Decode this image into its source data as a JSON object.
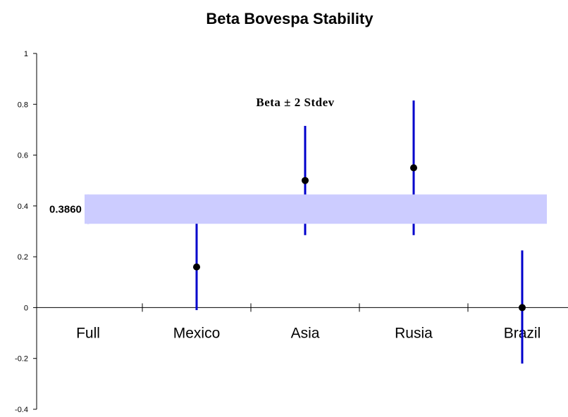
{
  "chart_data": {
    "type": "scatter",
    "title": "Beta Bovespa Stability",
    "subtitle": "Beta ± 2 Stdev",
    "xlabel": "",
    "ylabel": "",
    "categories": [
      "Full",
      "Mexico",
      "Asia",
      "Rusia",
      "Brazil"
    ],
    "ylim": [
      -0.4,
      1
    ],
    "yticks": [
      -0.4,
      -0.2,
      0,
      0.2,
      0.4,
      0.6,
      0.8,
      1
    ],
    "ytick_labels": [
      "-0.4",
      "-0.2",
      "0",
      "0.2",
      "0.4",
      "0.6",
      "0.8",
      "1"
    ],
    "grid": false,
    "series": [
      {
        "values": [
          0.386,
          0.16,
          0.5,
          0.55,
          0.0
        ],
        "lower": [
          0.33,
          -0.01,
          0.285,
          0.285,
          -0.22
        ],
        "upper": [
          0.445,
          0.335,
          0.715,
          0.815,
          0.225
        ]
      }
    ],
    "band": {
      "lower": 0.33,
      "upper": 0.445,
      "label": "0.3860"
    },
    "colors": {
      "errorbar": "#0000cc",
      "point": "#000000",
      "band": "#ccccff"
    }
  }
}
